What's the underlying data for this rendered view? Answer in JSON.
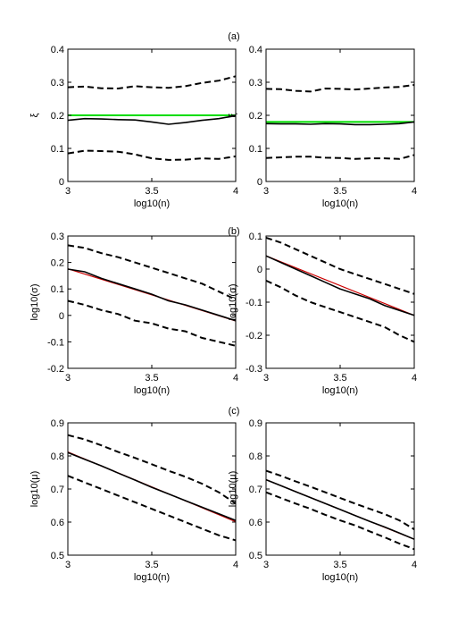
{
  "panel_labels": [
    "(a)",
    "(b)",
    "(c)"
  ],
  "chart_data": [
    {
      "id": "a-left",
      "type": "line",
      "panel": "(a)",
      "xlabel": "log10(n)",
      "ylabel": "ξ",
      "xlim": [
        3,
        4
      ],
      "ylim": [
        0,
        0.4
      ],
      "xticks": [
        3,
        3.5,
        4
      ],
      "xtick_labels": [
        "3",
        "3.5",
        "4"
      ],
      "yticks": [
        0,
        0.1,
        0.2,
        0.3,
        0.4
      ],
      "ytick_labels": [
        "0",
        "0.1",
        "0.2",
        "0.3",
        "0.4"
      ],
      "series": [
        {
          "role": "reference",
          "color": "#00dd00",
          "style": "solid",
          "x": [
            3,
            4
          ],
          "y": [
            0.2,
            0.2
          ]
        },
        {
          "role": "upper",
          "color": "#000000",
          "style": "dashed",
          "x": [
            3,
            3.1,
            3.2,
            3.3,
            3.4,
            3.5,
            3.6,
            3.7,
            3.8,
            3.9,
            4
          ],
          "y": [
            0.285,
            0.287,
            0.282,
            0.281,
            0.288,
            0.285,
            0.283,
            0.288,
            0.298,
            0.305,
            0.318
          ]
        },
        {
          "role": "mean",
          "color": "#000000",
          "style": "solid",
          "x": [
            3,
            3.1,
            3.2,
            3.3,
            3.4,
            3.5,
            3.6,
            3.7,
            3.8,
            3.9,
            4
          ],
          "y": [
            0.185,
            0.19,
            0.189,
            0.187,
            0.186,
            0.18,
            0.173,
            0.178,
            0.185,
            0.19,
            0.199
          ]
        },
        {
          "role": "lower",
          "color": "#000000",
          "style": "dashed",
          "x": [
            3,
            3.1,
            3.2,
            3.3,
            3.4,
            3.5,
            3.6,
            3.7,
            3.8,
            3.9,
            4
          ],
          "y": [
            0.085,
            0.093,
            0.092,
            0.09,
            0.082,
            0.07,
            0.065,
            0.066,
            0.07,
            0.068,
            0.076
          ]
        }
      ]
    },
    {
      "id": "a-right",
      "type": "line",
      "panel": "(a)",
      "xlabel": "log10(n)",
      "ylabel": "ξ",
      "xlim": [
        3,
        4
      ],
      "ylim": [
        0,
        0.4
      ],
      "xticks": [
        3,
        3.5,
        4
      ],
      "xtick_labels": [
        "3",
        "3.5",
        "4"
      ],
      "yticks": [
        0,
        0.1,
        0.2,
        0.3,
        0.4
      ],
      "ytick_labels": [
        "0",
        "0.1",
        "0.2",
        "0.3",
        "0.4"
      ],
      "series": [
        {
          "role": "reference",
          "color": "#00dd00",
          "style": "solid",
          "x": [
            3,
            4
          ],
          "y": [
            0.18,
            0.18
          ]
        },
        {
          "role": "upper",
          "color": "#000000",
          "style": "dashed",
          "x": [
            3,
            3.1,
            3.2,
            3.3,
            3.4,
            3.5,
            3.6,
            3.7,
            3.8,
            3.9,
            4
          ],
          "y": [
            0.28,
            0.279,
            0.274,
            0.272,
            0.281,
            0.28,
            0.278,
            0.281,
            0.284,
            0.286,
            0.292
          ]
        },
        {
          "role": "mean",
          "color": "#000000",
          "style": "solid",
          "x": [
            3,
            3.1,
            3.2,
            3.3,
            3.4,
            3.5,
            3.6,
            3.7,
            3.8,
            3.9,
            4
          ],
          "y": [
            0.175,
            0.174,
            0.174,
            0.173,
            0.175,
            0.174,
            0.172,
            0.172,
            0.173,
            0.175,
            0.18
          ]
        },
        {
          "role": "lower",
          "color": "#000000",
          "style": "dashed",
          "x": [
            3,
            3.1,
            3.2,
            3.3,
            3.4,
            3.5,
            3.6,
            3.7,
            3.8,
            3.9,
            4
          ],
          "y": [
            0.071,
            0.073,
            0.075,
            0.075,
            0.072,
            0.071,
            0.068,
            0.07,
            0.07,
            0.068,
            0.08
          ]
        }
      ]
    },
    {
      "id": "b-left",
      "type": "line",
      "panel": "(b)",
      "xlabel": "log10(n)",
      "ylabel": "log10(σ)",
      "xlim": [
        3,
        4
      ],
      "ylim": [
        -0.2,
        0.3
      ],
      "xticks": [
        3,
        3.5,
        4
      ],
      "xtick_labels": [
        "3",
        "3.5",
        "4"
      ],
      "yticks": [
        -0.2,
        -0.1,
        0,
        0.1,
        0.2,
        0.3
      ],
      "ytick_labels": [
        "-0.2",
        "-0.1",
        "0",
        "0.1",
        "0.2",
        "0.3"
      ],
      "series": [
        {
          "role": "upper",
          "color": "#000000",
          "style": "dashed",
          "x": [
            3,
            3.1,
            3.2,
            3.3,
            3.4,
            3.5,
            3.6,
            3.7,
            3.8,
            3.9,
            4
          ],
          "y": [
            0.265,
            0.255,
            0.235,
            0.22,
            0.2,
            0.18,
            0.16,
            0.14,
            0.12,
            0.09,
            0.06
          ]
        },
        {
          "role": "reference",
          "color": "#cc0000",
          "style": "solid",
          "x": [
            3,
            4
          ],
          "y": [
            0.176,
            -0.021
          ]
        },
        {
          "role": "mean",
          "color": "#000000",
          "style": "solid",
          "x": [
            3,
            3.1,
            3.2,
            3.3,
            3.4,
            3.5,
            3.6,
            3.7,
            3.8,
            3.9,
            4
          ],
          "y": [
            0.175,
            0.165,
            0.14,
            0.12,
            0.1,
            0.08,
            0.055,
            0.04,
            0.02,
            0.0,
            -0.02
          ]
        },
        {
          "role": "lower",
          "color": "#000000",
          "style": "dashed",
          "x": [
            3,
            3.1,
            3.2,
            3.3,
            3.4,
            3.5,
            3.6,
            3.7,
            3.8,
            3.9,
            4
          ],
          "y": [
            0.055,
            0.04,
            0.02,
            0.005,
            -0.02,
            -0.03,
            -0.05,
            -0.06,
            -0.085,
            -0.1,
            -0.115
          ]
        }
      ]
    },
    {
      "id": "b-right",
      "type": "line",
      "panel": "(b)",
      "xlabel": "log10(n)",
      "ylabel": "log10(σ)",
      "xlim": [
        3,
        4
      ],
      "ylim": [
        -0.3,
        0.1
      ],
      "xticks": [
        3,
        3.5,
        4
      ],
      "xtick_labels": [
        "3",
        "3.5",
        "4"
      ],
      "yticks": [
        -0.3,
        -0.2,
        -0.1,
        0,
        0.1
      ],
      "ytick_labels": [
        "-0.3",
        "-0.2",
        "-0.1",
        "0",
        "0.1"
      ],
      "series": [
        {
          "role": "upper",
          "color": "#000000",
          "style": "dashed",
          "x": [
            3,
            3.1,
            3.2,
            3.3,
            3.4,
            3.5,
            3.6,
            3.7,
            3.8,
            3.9,
            4
          ],
          "y": [
            0.095,
            0.08,
            0.06,
            0.04,
            0.02,
            0.0,
            -0.015,
            -0.03,
            -0.045,
            -0.06,
            -0.075
          ]
        },
        {
          "role": "reference",
          "color": "#cc0000",
          "style": "solid",
          "x": [
            3,
            4
          ],
          "y": [
            0.04,
            -0.14
          ]
        },
        {
          "role": "mean",
          "color": "#000000",
          "style": "solid",
          "x": [
            3,
            3.1,
            3.2,
            3.3,
            3.4,
            3.5,
            3.6,
            3.7,
            3.8,
            3.9,
            4
          ],
          "y": [
            0.04,
            0.02,
            0.0,
            -0.02,
            -0.04,
            -0.06,
            -0.075,
            -0.09,
            -0.11,
            -0.125,
            -0.14
          ]
        },
        {
          "role": "lower",
          "color": "#000000",
          "style": "dashed",
          "x": [
            3,
            3.1,
            3.2,
            3.3,
            3.4,
            3.5,
            3.6,
            3.7,
            3.8,
            3.9,
            4
          ],
          "y": [
            -0.035,
            -0.055,
            -0.08,
            -0.1,
            -0.115,
            -0.13,
            -0.145,
            -0.16,
            -0.175,
            -0.2,
            -0.22
          ]
        }
      ]
    },
    {
      "id": "c-left",
      "type": "line",
      "panel": "(c)",
      "xlabel": "log10(n)",
      "ylabel": "log10(μ)",
      "xlim": [
        3,
        4
      ],
      "ylim": [
        0.5,
        0.9
      ],
      "xticks": [
        3,
        3.5,
        4
      ],
      "xtick_labels": [
        "3",
        "3.5",
        "4"
      ],
      "yticks": [
        0.5,
        0.6,
        0.7,
        0.8,
        0.9
      ],
      "ytick_labels": [
        "0.5",
        "0.6",
        "0.7",
        "0.8",
        "0.9"
      ],
      "series": [
        {
          "role": "upper",
          "color": "#000000",
          "style": "dashed",
          "x": [
            3,
            3.1,
            3.2,
            3.3,
            3.4,
            3.5,
            3.6,
            3.7,
            3.8,
            3.9,
            4
          ],
          "y": [
            0.863,
            0.85,
            0.832,
            0.812,
            0.794,
            0.775,
            0.755,
            0.737,
            0.716,
            0.69,
            0.656
          ]
        },
        {
          "role": "reference",
          "color": "#cc0000",
          "style": "solid",
          "x": [
            3,
            4
          ],
          "y": [
            0.812,
            0.601
          ]
        },
        {
          "role": "mean",
          "color": "#000000",
          "style": "solid",
          "x": [
            3,
            3.1,
            3.2,
            3.3,
            3.4,
            3.5,
            3.6,
            3.7,
            3.8,
            3.9,
            4
          ],
          "y": [
            0.81,
            0.79,
            0.77,
            0.748,
            0.727,
            0.705,
            0.685,
            0.665,
            0.645,
            0.625,
            0.605
          ]
        },
        {
          "role": "lower",
          "color": "#000000",
          "style": "dashed",
          "x": [
            3,
            3.1,
            3.2,
            3.3,
            3.4,
            3.5,
            3.6,
            3.7,
            3.8,
            3.9,
            4
          ],
          "y": [
            0.74,
            0.72,
            0.7,
            0.68,
            0.66,
            0.64,
            0.62,
            0.6,
            0.58,
            0.56,
            0.545
          ]
        }
      ]
    },
    {
      "id": "c-right",
      "type": "line",
      "panel": "(c)",
      "xlabel": "log10(n)",
      "ylabel": "log10(μ)",
      "xlim": [
        3,
        4
      ],
      "ylim": [
        0.5,
        0.9
      ],
      "xticks": [
        3,
        3.5,
        4
      ],
      "xtick_labels": [
        "3",
        "3.5",
        "4"
      ],
      "yticks": [
        0.5,
        0.6,
        0.7,
        0.8,
        0.9
      ],
      "ytick_labels": [
        "0.5",
        "0.6",
        "0.7",
        "0.8",
        "0.9"
      ],
      "series": [
        {
          "role": "upper",
          "color": "#000000",
          "style": "dashed",
          "x": [
            3,
            3.1,
            3.2,
            3.3,
            3.4,
            3.5,
            3.6,
            3.7,
            3.8,
            3.9,
            4
          ],
          "y": [
            0.755,
            0.74,
            0.723,
            0.707,
            0.69,
            0.673,
            0.656,
            0.64,
            0.624,
            0.605,
            0.578
          ]
        },
        {
          "role": "reference",
          "color": "#cc0000",
          "style": "solid",
          "x": [
            3,
            4
          ],
          "y": [
            0.728,
            0.548
          ]
        },
        {
          "role": "mean",
          "color": "#000000",
          "style": "solid",
          "x": [
            3,
            3.1,
            3.2,
            3.3,
            3.4,
            3.5,
            3.6,
            3.7,
            3.8,
            3.9,
            4
          ],
          "y": [
            0.728,
            0.71,
            0.692,
            0.674,
            0.656,
            0.638,
            0.62,
            0.602,
            0.585,
            0.567,
            0.548
          ]
        },
        {
          "role": "lower",
          "color": "#000000",
          "style": "dashed",
          "x": [
            3,
            3.1,
            3.2,
            3.3,
            3.4,
            3.5,
            3.6,
            3.7,
            3.8,
            3.9,
            4
          ],
          "y": [
            0.69,
            0.673,
            0.656,
            0.64,
            0.622,
            0.605,
            0.59,
            0.572,
            0.554,
            0.535,
            0.518
          ]
        }
      ]
    }
  ]
}
